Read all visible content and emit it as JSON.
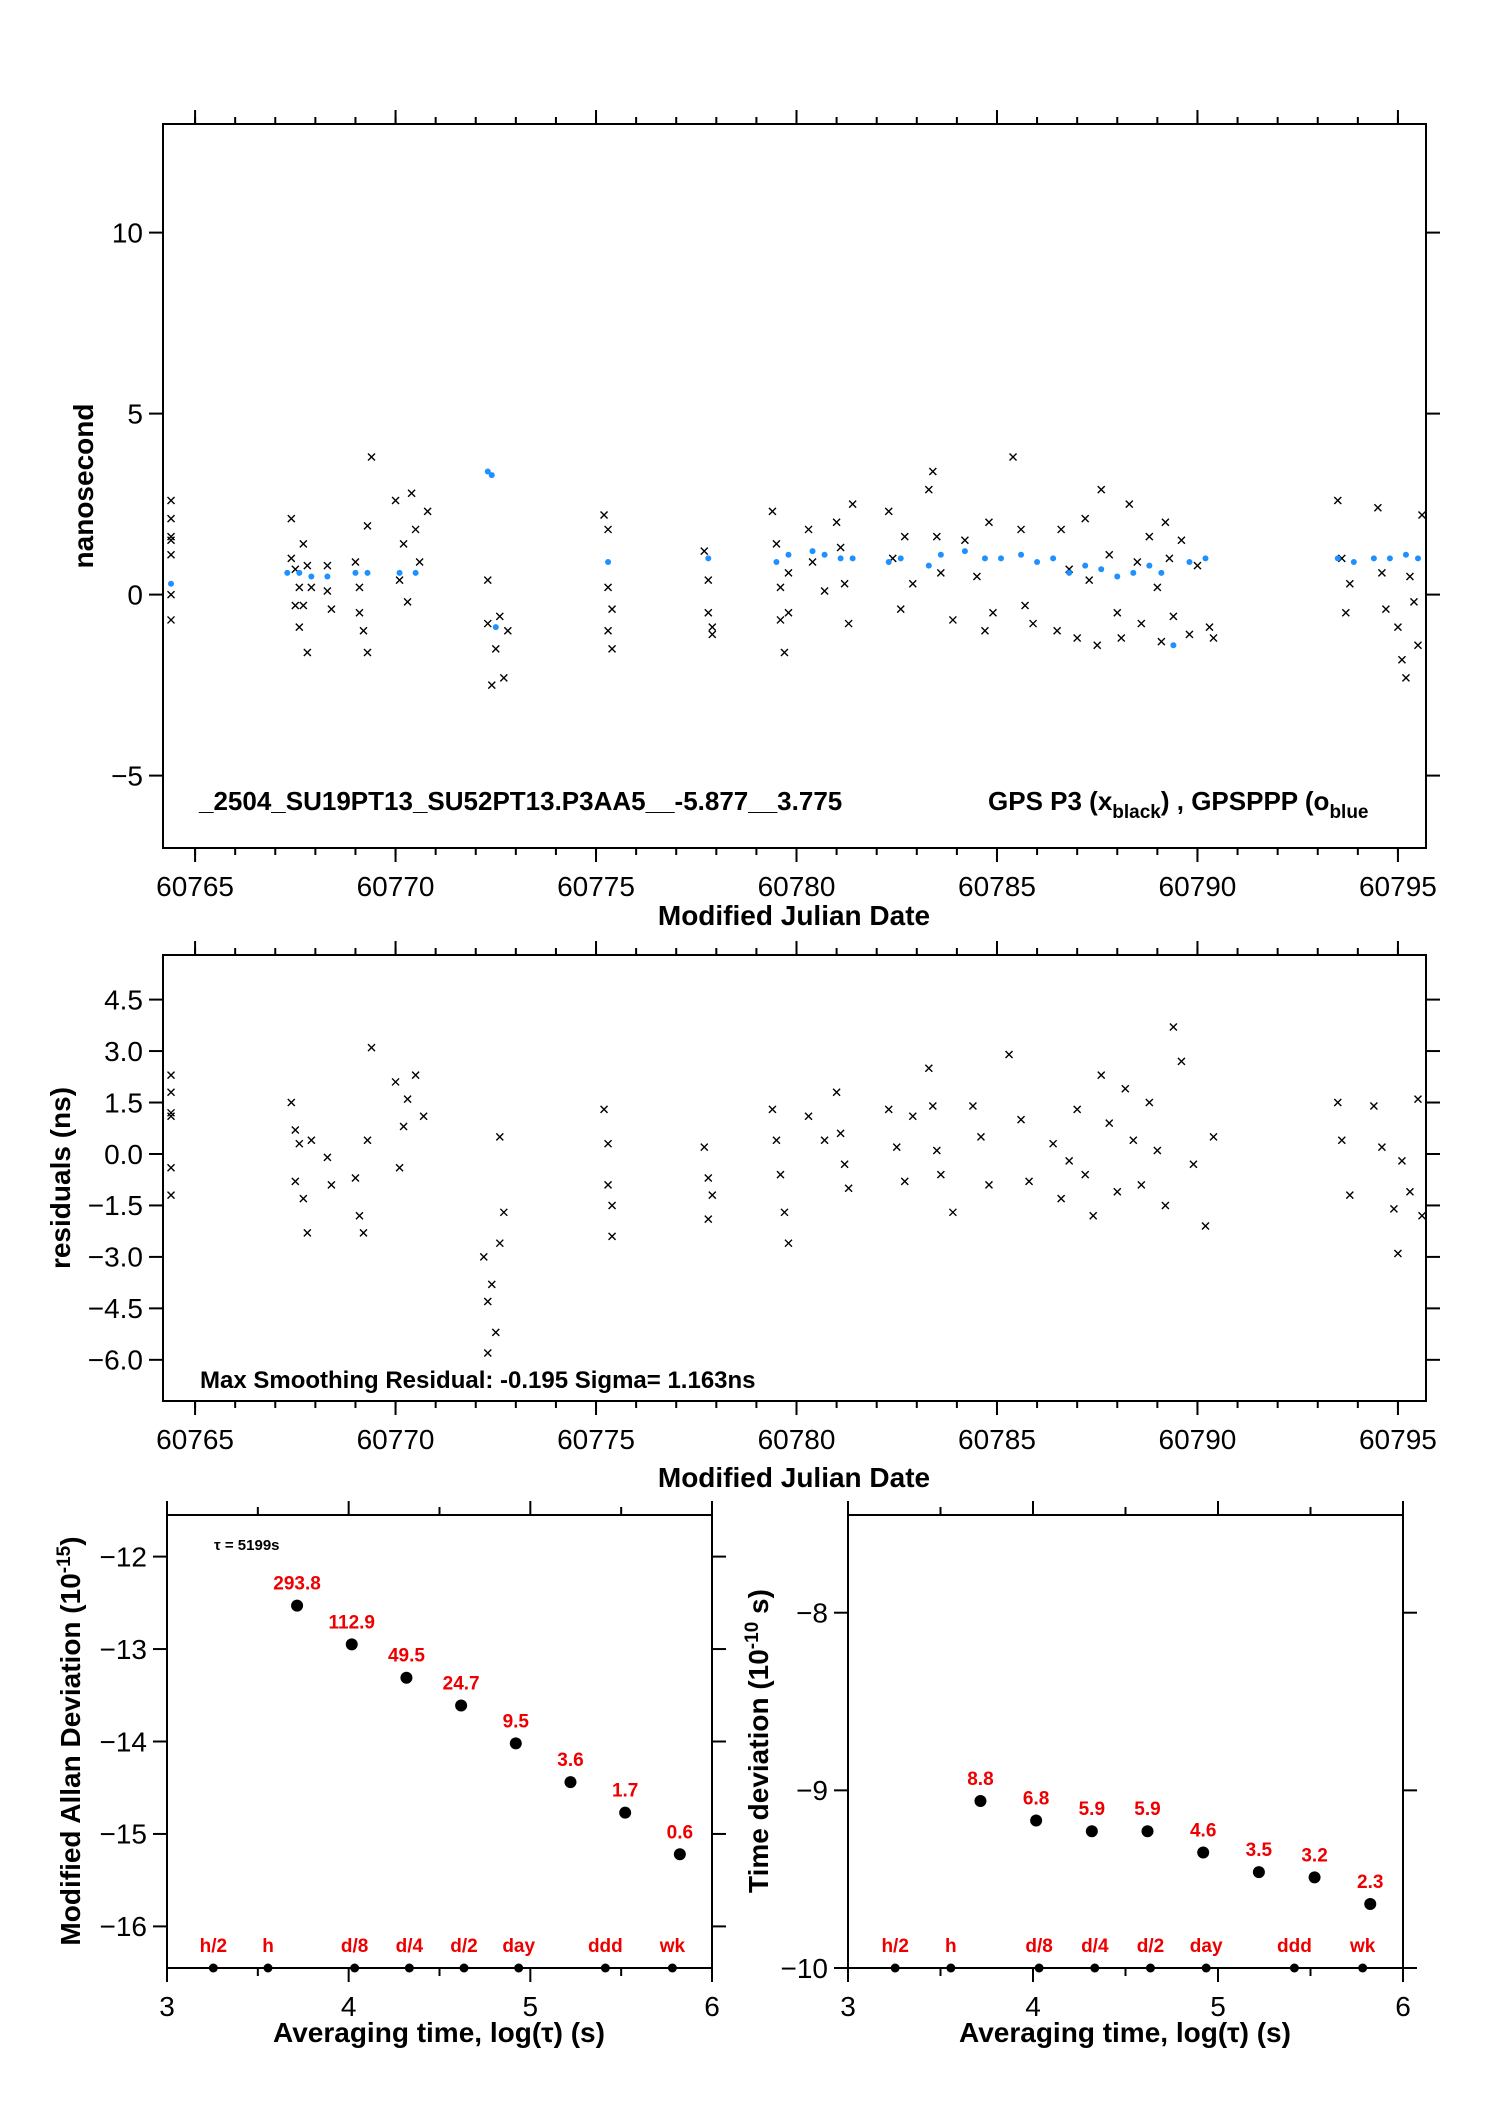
{
  "colors": {
    "scatter": "#000000",
    "smooth": "#1e90ff",
    "labels": "#ee0000"
  },
  "chart_data": [
    {
      "type": "scatter",
      "ylabel": "nanosecond",
      "xlabel": "Modified Julian Date",
      "xlim": [
        60764.2,
        60795.7
      ],
      "ylim": [
        -7.0,
        13.0
      ],
      "yticks": [
        -5,
        0,
        5,
        10
      ],
      "ytick_labels": [
        "−5",
        "0",
        "5",
        "10"
      ],
      "xticks": [
        60765,
        60770,
        60775,
        60780,
        60785,
        60790,
        60795
      ],
      "xtick_labels": [
        "60765",
        "60770",
        "60775",
        "60780",
        "60785",
        "60790",
        "60795"
      ],
      "annotation": "_2504_SU19PT13_SU52PT13.P3AA5__-5.877__3.775",
      "legend_text": "GPS P3 (x",
      "legend_sub": "black",
      "legend_text2": ") ,  GPSPPP (o",
      "legend_sub2": "blue",
      "series": [
        {
          "marker": "x",
          "color": "#000000",
          "x": [
            60764.4,
            60764.4,
            60764.4,
            60764.4,
            60764.4,
            60764.4,
            60764.4,
            60767.4,
            60767.4,
            60767.5,
            60767.5,
            60767.6,
            60767.6,
            60767.7,
            60767.7,
            60767.8,
            60767.8,
            60767.9,
            60768.3,
            60768.3,
            60768.4,
            60769.0,
            60769.1,
            60769.1,
            60769.2,
            60769.3,
            60769.3,
            60769.4,
            60770.0,
            60770.1,
            60770.2,
            60770.3,
            60770.4,
            60770.5,
            60770.6,
            60770.8,
            60772.3,
            60772.3,
            60772.4,
            60772.5,
            60772.6,
            60772.7,
            60772.8,
            60775.2,
            60775.3,
            60775.3,
            60775.3,
            60775.4,
            60775.4,
            60777.7,
            60777.8,
            60777.8,
            60777.9,
            60777.9,
            60779.4,
            60779.5,
            60779.6,
            60779.6,
            60779.7,
            60779.8,
            60779.8,
            60780.3,
            60780.4,
            60780.7,
            60781.0,
            60781.1,
            60781.2,
            60781.3,
            60781.4,
            60782.3,
            60782.4,
            60782.6,
            60782.7,
            60782.9,
            60783.3,
            60783.4,
            60783.5,
            60783.6,
            60783.9,
            60784.2,
            60784.5,
            60784.7,
            60784.8,
            60784.9,
            60785.4,
            60785.6,
            60785.7,
            60785.9,
            60786.5,
            60786.6,
            60786.8,
            60787.0,
            60787.2,
            60787.3,
            60787.5,
            60787.6,
            60787.8,
            60788.0,
            60788.1,
            60788.3,
            60788.5,
            60788.6,
            60788.8,
            60789.0,
            60789.1,
            60789.2,
            60789.3,
            60789.4,
            60789.6,
            60789.8,
            60790.0,
            60790.3,
            60790.4,
            60793.5,
            60793.6,
            60793.7,
            60793.8,
            60794.5,
            60794.6,
            60794.7,
            60795.0,
            60795.1,
            60795.2,
            60795.3,
            60795.4,
            60795.5,
            60795.6
          ],
          "y": [
            2.6,
            2.1,
            1.6,
            1.1,
            0.0,
            -0.7,
            1.5,
            2.1,
            1.0,
            -0.3,
            0.7,
            0.2,
            -0.9,
            1.4,
            -0.3,
            -1.6,
            0.8,
            0.2,
            0.8,
            0.1,
            -0.4,
            0.9,
            -0.5,
            0.2,
            -1.0,
            -1.6,
            1.9,
            3.8,
            2.6,
            0.4,
            1.4,
            -0.2,
            2.8,
            1.8,
            0.9,
            2.3,
            0.4,
            -0.8,
            -2.5,
            -1.5,
            -0.6,
            -2.3,
            -1.0,
            2.2,
            1.8,
            0.2,
            -1.0,
            -1.5,
            -0.4,
            1.2,
            0.4,
            -0.5,
            -1.1,
            -0.9,
            2.3,
            1.4,
            0.2,
            -0.7,
            -1.6,
            0.6,
            -0.5,
            1.8,
            0.9,
            0.1,
            2.0,
            1.3,
            0.3,
            -0.8,
            2.5,
            2.3,
            1.0,
            -0.4,
            1.6,
            0.3,
            2.9,
            3.4,
            1.6,
            0.6,
            -0.7,
            1.5,
            0.5,
            -1.0,
            2.0,
            -0.5,
            3.8,
            1.8,
            -0.3,
            -0.8,
            -1.0,
            1.8,
            0.7,
            -1.2,
            2.1,
            0.4,
            -1.4,
            2.9,
            1.1,
            -0.5,
            -1.2,
            2.5,
            0.9,
            -0.8,
            1.6,
            0.2,
            -1.3,
            2.0,
            1.0,
            -0.6,
            1.5,
            -1.1,
            0.8,
            -0.9,
            -1.2,
            2.6,
            1.0,
            -0.5,
            0.3,
            2.4,
            0.6,
            -0.4,
            -0.9,
            -1.8,
            -2.3,
            0.5,
            -0.2,
            -1.4,
            2.2
          ]
        },
        {
          "marker": "o",
          "color": "#1e90ff",
          "x": [
            60764.4,
            60767.3,
            60767.6,
            60767.9,
            60768.3,
            60769.0,
            60769.3,
            60770.1,
            60770.5,
            60772.3,
            60772.4,
            60772.5,
            60775.3,
            60777.8,
            60779.5,
            60779.8,
            60780.4,
            60780.7,
            60781.1,
            60781.4,
            60782.3,
            60782.6,
            60783.3,
            60783.6,
            60784.2,
            60784.7,
            60785.1,
            60785.6,
            60786.0,
            60786.4,
            60786.8,
            60787.2,
            60787.6,
            60788.0,
            60788.4,
            60788.8,
            60789.1,
            60789.4,
            60789.8,
            60790.2,
            60793.5,
            60793.9,
            60794.4,
            60794.8,
            60795.2,
            60795.5
          ],
          "y": [
            0.3,
            0.6,
            0.6,
            0.5,
            0.5,
            0.6,
            0.6,
            0.6,
            0.6,
            3.4,
            3.3,
            -0.9,
            0.9,
            1.0,
            0.9,
            1.1,
            1.2,
            1.1,
            1.0,
            1.0,
            0.9,
            1.0,
            0.8,
            1.1,
            1.2,
            1.0,
            1.0,
            1.1,
            0.9,
            1.0,
            0.6,
            0.8,
            0.7,
            0.5,
            0.6,
            0.8,
            0.6,
            -1.4,
            0.9,
            1.0,
            1.0,
            0.9,
            1.0,
            1.0,
            1.1,
            1.0
          ]
        }
      ]
    },
    {
      "type": "scatter",
      "ylabel": "residuals (ns)",
      "xlabel": "Modified Julian Date",
      "xlim": [
        60764.2,
        60795.7
      ],
      "ylim": [
        -7.2,
        5.8
      ],
      "yticks": [
        -6.0,
        -4.5,
        -3.0,
        -1.5,
        0.0,
        1.5,
        3.0,
        4.5
      ],
      "ytick_labels": [
        "−6.0",
        "−4.5",
        "−3.0",
        "−1.5",
        "0.0",
        "1.5",
        "3.0",
        "4.5"
      ],
      "xticks": [
        60765,
        60770,
        60775,
        60780,
        60785,
        60790,
        60795
      ],
      "xtick_labels": [
        "60765",
        "60770",
        "60775",
        "60780",
        "60785",
        "60790",
        "60795"
      ],
      "annotation": "Max Smoothing Residual: -0.195  Sigma= 1.163ns",
      "series": [
        {
          "marker": "x",
          "color": "#000000",
          "x": [
            60764.4,
            60764.4,
            60764.4,
            60764.4,
            60764.4,
            60764.4,
            60767.4,
            60767.5,
            60767.5,
            60767.6,
            60767.7,
            60767.8,
            60767.9,
            60768.3,
            60768.4,
            60769.0,
            60769.1,
            60769.2,
            60769.3,
            60769.4,
            60770.0,
            60770.1,
            60770.2,
            60770.3,
            60770.5,
            60770.7,
            60772.2,
            60772.3,
            60772.3,
            60772.4,
            60772.5,
            60772.6,
            60772.6,
            60772.7,
            60775.2,
            60775.3,
            60775.3,
            60775.4,
            60775.4,
            60777.7,
            60777.8,
            60777.8,
            60777.9,
            60779.4,
            60779.5,
            60779.6,
            60779.7,
            60779.8,
            60780.3,
            60780.7,
            60781.0,
            60781.1,
            60781.2,
            60781.3,
            60782.3,
            60782.5,
            60782.7,
            60782.9,
            60783.3,
            60783.4,
            60783.5,
            60783.6,
            60783.9,
            60784.4,
            60784.6,
            60784.8,
            60785.3,
            60785.6,
            60785.8,
            60786.4,
            60786.6,
            60786.8,
            60787.0,
            60787.2,
            60787.4,
            60787.6,
            60787.8,
            60788.0,
            60788.2,
            60788.4,
            60788.6,
            60788.8,
            60789.0,
            60789.2,
            60789.4,
            60789.6,
            60789.9,
            60790.2,
            60790.4,
            60793.5,
            60793.6,
            60793.8,
            60794.4,
            60794.6,
            60794.9,
            60795.0,
            60795.1,
            60795.3,
            60795.5,
            60795.6
          ],
          "y": [
            2.3,
            1.8,
            1.1,
            -0.4,
            -1.2,
            1.2,
            1.5,
            0.7,
            -0.8,
            0.3,
            -1.3,
            -2.3,
            0.4,
            -0.1,
            -0.9,
            -0.7,
            -1.8,
            -2.3,
            0.4,
            3.1,
            2.1,
            -0.4,
            0.8,
            1.6,
            2.3,
            1.1,
            -3.0,
            -4.3,
            -5.8,
            -3.8,
            -5.2,
            -2.6,
            0.5,
            -1.7,
            1.3,
            0.3,
            -0.9,
            -2.4,
            -1.5,
            0.2,
            -0.7,
            -1.9,
            -1.2,
            1.3,
            0.4,
            -0.6,
            -1.7,
            -2.6,
            1.1,
            0.4,
            1.8,
            0.6,
            -0.3,
            -1.0,
            1.3,
            0.2,
            -0.8,
            1.1,
            2.5,
            1.4,
            0.1,
            -0.6,
            -1.7,
            1.4,
            0.5,
            -0.9,
            2.9,
            1.0,
            -0.8,
            0.3,
            -1.3,
            -0.2,
            1.3,
            -0.6,
            -1.8,
            2.3,
            0.9,
            -1.1,
            1.9,
            0.4,
            -0.9,
            1.5,
            0.1,
            -1.5,
            3.7,
            2.7,
            -0.3,
            -2.1,
            0.5,
            1.5,
            0.4,
            -1.2,
            1.4,
            0.2,
            -1.6,
            -2.9,
            -0.2,
            -1.1,
            1.6,
            -1.8
          ]
        }
      ]
    },
    {
      "type": "scatter",
      "ylabel": "Modified Allan Deviation (10",
      "ylabel_sup": "-15",
      "ylabel_end": ")",
      "xlabel": "Averaging time, log(τ) (s)",
      "tau_note": "τ = 5199s",
      "xlim": [
        3.0,
        6.0
      ],
      "ylim": [
        -16.45,
        -11.55
      ],
      "xticks": [
        3,
        4,
        5,
        6
      ],
      "xtick_labels": [
        "3",
        "4",
        "5",
        "6"
      ],
      "yticks": [
        -16,
        -15,
        -14,
        -13,
        -12
      ],
      "ytick_labels": [
        "−16",
        "−15",
        "−14",
        "−13",
        "−12"
      ],
      "x": [
        3.716,
        4.017,
        4.318,
        4.619,
        4.92,
        5.221,
        5.522,
        5.823
      ],
      "y": [
        -12.53,
        -12.95,
        -13.31,
        -13.61,
        -14.02,
        -14.44,
        -14.77,
        -15.22
      ],
      "point_labels": [
        "293.8",
        "112.9",
        "49.5",
        "24.7",
        "9.5",
        "3.6",
        "1.7",
        "0.6"
      ],
      "marker_ticks": [
        {
          "label": "h/2",
          "x": 3.255
        },
        {
          "label": "h",
          "x": 3.556
        },
        {
          "label": "d/8",
          "x": 4.033
        },
        {
          "label": "d/4",
          "x": 4.334
        },
        {
          "label": "d/2",
          "x": 4.635
        },
        {
          "label": "day",
          "x": 4.936
        },
        {
          "label": "ddd",
          "x": 5.413
        },
        {
          "label": "wk",
          "x": 5.782
        }
      ]
    },
    {
      "type": "scatter",
      "ylabel": "Time deviation (10",
      "ylabel_sup": "-10",
      "ylabel_end": " s)",
      "xlabel": "Averaging time, log(τ) (s)",
      "xlim": [
        3.0,
        6.0
      ],
      "ylim": [
        -10.0,
        -7.45
      ],
      "xticks": [
        3,
        4,
        5,
        6
      ],
      "xtick_labels": [
        "3",
        "4",
        "5",
        "6"
      ],
      "yticks": [
        -10,
        -9,
        -8
      ],
      "ytick_labels": [
        "−10",
        "−9",
        "−8"
      ],
      "x": [
        3.716,
        4.017,
        4.318,
        4.619,
        4.92,
        5.221,
        5.522,
        5.823
      ],
      "y": [
        -9.06,
        -9.17,
        -9.23,
        -9.23,
        -9.35,
        -9.46,
        -9.49,
        -9.64
      ],
      "point_labels": [
        "8.8",
        "6.8",
        "5.9",
        "5.9",
        "4.6",
        "3.5",
        "3.2",
        "2.3"
      ],
      "marker_ticks": [
        {
          "label": "h/2",
          "x": 3.255
        },
        {
          "label": "h",
          "x": 3.556
        },
        {
          "label": "d/8",
          "x": 4.033
        },
        {
          "label": "d/4",
          "x": 4.334
        },
        {
          "label": "d/2",
          "x": 4.635
        },
        {
          "label": "day",
          "x": 4.936
        },
        {
          "label": "ddd",
          "x": 5.413
        },
        {
          "label": "wk",
          "x": 5.782
        }
      ]
    }
  ]
}
